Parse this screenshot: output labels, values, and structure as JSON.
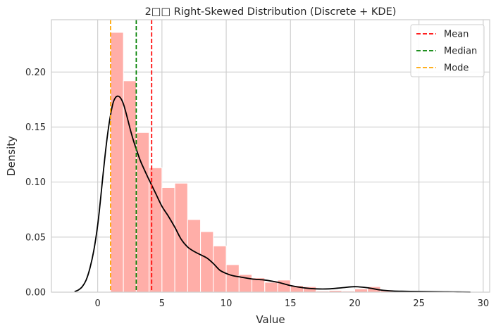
{
  "chart_data": {
    "type": "bar",
    "title": "2□□ Right-Skewed Distribution (Discrete + KDE)",
    "xlabel": "Value",
    "ylabel": "Density",
    "xlim": [
      -3.6,
      30.5
    ],
    "ylim": [
      0,
      0.2475
    ],
    "x_ticks": [
      0,
      5,
      10,
      15,
      20,
      25,
      30
    ],
    "y_ticks": [
      0.0,
      0.05,
      0.1,
      0.15,
      0.2
    ],
    "x_tick_labels": [
      "0",
      "5",
      "10",
      "15",
      "20",
      "25",
      "30"
    ],
    "y_tick_labels": [
      "0.00",
      "0.05",
      "0.10",
      "0.15",
      "0.20"
    ],
    "grid": true,
    "legend_position": "top-right",
    "histogram": {
      "bin_width": 1.0,
      "bin_starts": [
        1,
        2,
        3,
        4,
        5,
        6,
        7,
        8,
        9,
        10,
        11,
        12,
        13,
        14,
        15,
        16,
        17,
        18,
        19,
        20,
        21,
        22,
        23,
        24,
        25,
        26,
        27,
        28
      ],
      "density": [
        0.236,
        0.192,
        0.145,
        0.113,
        0.095,
        0.099,
        0.066,
        0.055,
        0.042,
        0.025,
        0.016,
        0.013,
        0.009,
        0.011,
        0.006,
        0.005,
        0.001,
        0.0015,
        0.001,
        0.003,
        0.005,
        0.002,
        0.0015,
        0.001,
        0.0008,
        0.0008,
        0.0005,
        0.0003
      ],
      "color": "#ffaea8"
    },
    "kde": {
      "x": [
        -1.8,
        -1.5,
        -1.2,
        -0.9,
        -0.6,
        -0.3,
        0.0,
        0.2,
        0.4,
        0.6,
        0.8,
        1.0,
        1.2,
        1.4,
        1.6,
        1.8,
        2.0,
        2.2,
        2.4,
        2.6,
        2.8,
        3.0,
        3.3,
        3.6,
        4.0,
        4.5,
        5.0,
        5.5,
        6.0,
        6.5,
        7.0,
        7.5,
        8.0,
        8.5,
        9.0,
        9.5,
        10.0,
        10.5,
        11.0,
        12.0,
        13.0,
        14.0,
        15.0,
        16.0,
        17.0,
        18.0,
        19.0,
        20.0,
        21.0,
        22.0,
        23.0,
        24.0,
        25.0,
        26.0,
        27.0,
        28.0,
        29.0
      ],
      "y": [
        0.0005,
        0.002,
        0.005,
        0.011,
        0.022,
        0.038,
        0.061,
        0.082,
        0.105,
        0.127,
        0.146,
        0.161,
        0.172,
        0.177,
        0.178,
        0.176,
        0.171,
        0.163,
        0.154,
        0.145,
        0.137,
        0.13,
        0.12,
        0.112,
        0.102,
        0.09,
        0.078,
        0.069,
        0.059,
        0.048,
        0.041,
        0.037,
        0.034,
        0.031,
        0.026,
        0.02,
        0.017,
        0.015,
        0.014,
        0.012,
        0.011,
        0.009,
        0.006,
        0.004,
        0.003,
        0.003,
        0.004,
        0.005,
        0.004,
        0.002,
        0.001,
        0.0008,
        0.0006,
        0.0005,
        0.0003,
        0.0002,
        0.0001
      ],
      "color": "#000000"
    },
    "reference_lines": [
      {
        "name": "Mean",
        "x": 4.2,
        "color": "#ff0000"
      },
      {
        "name": "Median",
        "x": 3.0,
        "color": "#008000"
      },
      {
        "name": "Mode",
        "x": 1.0,
        "color": "#ffa500"
      }
    ]
  }
}
